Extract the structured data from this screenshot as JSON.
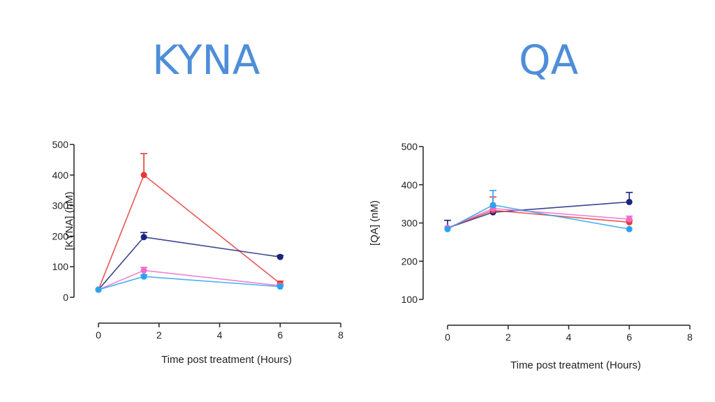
{
  "chart_data": [
    {
      "type": "line",
      "title": "KYNA",
      "xlabel": "Time post treatment (Hours)",
      "ylabel": "[KYNA] (nM)",
      "x_ticks": [
        "0",
        "2",
        "4",
        "6",
        "8"
      ],
      "y_ticks": [
        "0",
        "100",
        "200",
        "300",
        "400",
        "500"
      ],
      "xlim": [
        0,
        8
      ],
      "ylim": [
        0,
        500
      ],
      "grid": false,
      "x": [
        0,
        1.5,
        6
      ],
      "series": [
        {
          "color": "#e53935",
          "values": [
            25,
            400,
            45
          ],
          "errors": [
            0,
            70,
            8
          ]
        },
        {
          "color": "#1a237e",
          "values": [
            25,
            197,
            132
          ],
          "errors": [
            0,
            15,
            5
          ]
        },
        {
          "color": "#f06bc8",
          "values": [
            25,
            88,
            38
          ],
          "errors": [
            0,
            10,
            4
          ]
        },
        {
          "color": "#29a3f0",
          "values": [
            25,
            68,
            35
          ],
          "errors": [
            0,
            6,
            4
          ]
        }
      ]
    },
    {
      "type": "line",
      "title": "QA",
      "xlabel": "Time post treatment (Hours)",
      "ylabel": "[QA] (nM)",
      "x_ticks": [
        "0",
        "2",
        "4",
        "6",
        "8"
      ],
      "y_ticks": [
        "100",
        "200",
        "300",
        "400",
        "500"
      ],
      "xlim": [
        0,
        8
      ],
      "ylim": [
        100,
        500
      ],
      "grid": false,
      "x": [
        0,
        1.5,
        6
      ],
      "series": [
        {
          "color": "#1a237e",
          "values": [
            287,
            328,
            355
          ],
          "errors": [
            20,
            0,
            25
          ]
        },
        {
          "color": "#e53935",
          "values": [
            287,
            333,
            302
          ],
          "errors": [
            0,
            35,
            5
          ]
        },
        {
          "color": "#f06bc8",
          "values": [
            287,
            338,
            310
          ],
          "errors": [
            0,
            5,
            8
          ]
        },
        {
          "color": "#29a3f0",
          "values": [
            284,
            347,
            284
          ],
          "errors": [
            0,
            38,
            0
          ]
        }
      ]
    }
  ]
}
